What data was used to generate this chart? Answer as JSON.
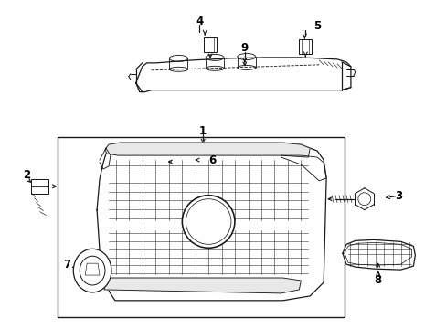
{
  "background_color": "#ffffff",
  "fig_width": 4.89,
  "fig_height": 3.6,
  "dpi": 100,
  "line_color": "#1a1a1a",
  "line_width": 0.9,
  "label_fontsize": 8.5
}
